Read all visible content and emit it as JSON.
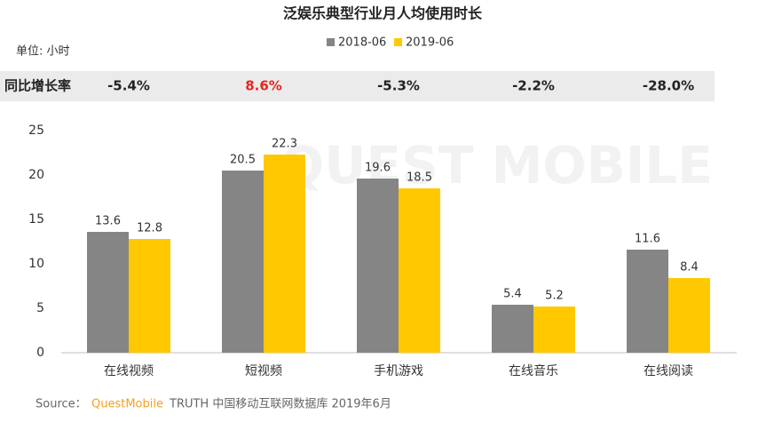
{
  "chart_data": {
    "type": "bar",
    "title": "泛娱乐典型行业月人均使用时长",
    "unit_label": "单位: 小时",
    "categories": [
      "在线视频",
      "短视频",
      "手机游戏",
      "在线音乐",
      "在线阅读"
    ],
    "series": [
      {
        "name": "2018-06",
        "color": "#858585",
        "values": [
          13.6,
          20.5,
          19.6,
          5.4,
          11.6
        ]
      },
      {
        "name": "2019-06",
        "color": "#ffc800",
        "values": [
          12.8,
          22.3,
          18.5,
          5.2,
          8.4
        ]
      }
    ],
    "ylim": [
      0,
      25
    ],
    "yticks": [
      0,
      5,
      10,
      15,
      20,
      25
    ],
    "grid": false,
    "growth": {
      "label": "同比增长率",
      "values": [
        -5.4,
        8.6,
        -5.3,
        -2.2,
        -28.0
      ],
      "value_labels": [
        "-5.4%",
        "8.6%",
        "-5.3%",
        "-2.2%",
        "-28.0%"
      ],
      "value_colors": [
        "#222222",
        "#e8251f",
        "#222222",
        "#222222",
        "#222222"
      ]
    },
    "watermark": "QUEST MOBILE",
    "source": {
      "prefix": "Source：",
      "brand": "QuestMobile",
      "text": "TRUTH 中国移动互联网数据库 2019年6月"
    }
  }
}
